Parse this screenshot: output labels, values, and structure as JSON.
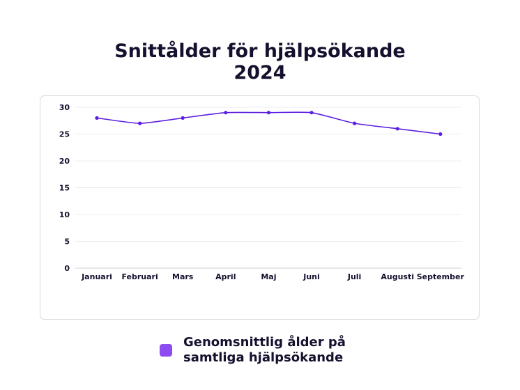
{
  "chart_data": {
    "type": "line",
    "title_lines": [
      "Snittålder för hjälpsökande",
      "2024"
    ],
    "categories": [
      "Januari",
      "Februari",
      "Mars",
      "April",
      "Maj",
      "Juni",
      "Juli",
      "Augusti",
      "September"
    ],
    "series": [
      {
        "name": "Genomsnittlig ålder på samtliga hjälpsökande",
        "values": [
          28,
          27,
          28,
          29,
          29,
          29,
          27,
          26,
          25
        ],
        "color": "#5b1fe0"
      }
    ],
    "ylim": [
      0,
      30
    ],
    "yticks": [
      0,
      5,
      10,
      15,
      20,
      25,
      30
    ],
    "grid": true,
    "legend": "bottom"
  },
  "colors": {
    "title": "#15102e",
    "line": "#5b1fe0",
    "legend_swatch": "#8c4cf0",
    "grid": "#ececec"
  }
}
